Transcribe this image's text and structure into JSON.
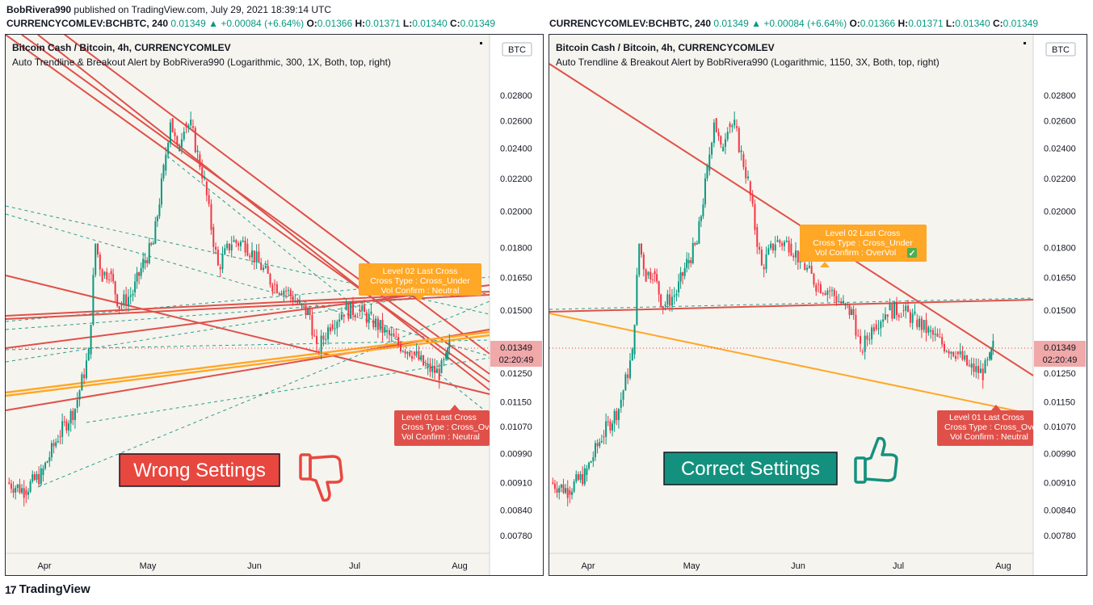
{
  "header": {
    "author": "BobRivera990",
    "published": "published on TradingView.com, July 29, 2021 18:39:14 UTC"
  },
  "quote": {
    "symbol": "CURRENCYCOMLEV:BCHBTC, 240",
    "last": "0.01349",
    "arrow": "▲",
    "change": "+0.00084 (+6.64%)",
    "o_label": "O:",
    "o": "0.01366",
    "h_label": "H:",
    "h": "0.01371",
    "l_label": "L:",
    "l": "0.01340",
    "c_label": "C:",
    "c": "0.01349"
  },
  "footer": {
    "brand": "TradingView",
    "logo": "17"
  },
  "colors": {
    "up": "#089981",
    "down": "#f23645",
    "red_line": "#e0504a",
    "orange_line": "#ffa726",
    "bg": "#f6f4ee",
    "price_badge": "#f0a8a8",
    "teal_badge": "#14917e"
  },
  "panels": [
    {
      "title": "Bitcoin Cash / Bitcoin, 4h, CURRENCYCOMLEV",
      "subtitle": "Auto Trendline & Breakout Alert by BobRivera990 (Logarithmic, 300, 1X, Both, top, right)",
      "currency_badge": "BTC",
      "price_badge": {
        "price": "0.01349",
        "time": "02:20:49"
      },
      "banner": "Wrong Settings",
      "banner_icon": "thumbs-down-icon",
      "level02": [
        "Level 02 Last Cross",
        "Cross Type : Cross_Under",
        "Vol Confirm : Neutral"
      ],
      "level01": [
        "Level 01 Last Cross",
        "Cross Type : Cross_Over",
        "Vol Confirm : Neutral"
      ]
    },
    {
      "title": "Bitcoin Cash / Bitcoin, 4h, CURRENCYCOMLEV",
      "subtitle": "Auto Trendline & Breakout Alert by BobRivera990 (Logarithmic, 1150, 3X, Both, top, right)",
      "currency_badge": "BTC",
      "price_badge": {
        "price": "0.01349",
        "time": "02:20:49"
      },
      "banner": "Correct Settings",
      "banner_icon": "thumbs-up-icon",
      "level02": [
        "Level 02 Last Cross",
        "Cross Type : Cross_Under",
        "Vol Confirm : OverVol"
      ],
      "level02_check": "✓",
      "level01": [
        "Level 01 Last Cross",
        "Cross Type : Cross_Over",
        "Vol Confirm : Neutral"
      ]
    }
  ],
  "chart_data": {
    "type": "line",
    "scale": "logarithmic",
    "x_ticks": [
      "Apr",
      "May",
      "Jun",
      "Jul",
      "Aug"
    ],
    "y_ticks": [
      "0.02800",
      "0.02600",
      "0.02400",
      "0.02200",
      "0.02000",
      "0.01800",
      "0.01650",
      "0.01500",
      "0.01349",
      "0.01250",
      "0.01150",
      "0.01070",
      "0.00990",
      "0.00910",
      "0.00840",
      "0.00780"
    ],
    "ylim": [
      0.0075,
      0.031
    ],
    "price_series": {
      "name": "BCHBTC close (approx.)",
      "x": [
        "Mar 21",
        "Mar 26",
        "Mar 31",
        "Apr 5",
        "Apr 10",
        "Apr 14",
        "Apr 16",
        "Apr 18",
        "Apr 20",
        "Apr 23",
        "Apr 27",
        "Apr 30",
        "May 3",
        "May 6",
        "May 8",
        "May 10",
        "May 12",
        "May 14",
        "May 16",
        "May 18",
        "May 20",
        "May 22",
        "May 26",
        "May 30",
        "Jun 3",
        "Jun 7",
        "Jun 11",
        "Jun 15",
        "Jun 18",
        "Jun 20",
        "Jun 24",
        "Jun 28",
        "Jul 2",
        "Jul 6",
        "Jul 10",
        "Jul 14",
        "Jul 18",
        "Jul 22",
        "Jul 26",
        "Jul 28",
        "Jul 29"
      ],
      "y": [
        0.0091,
        0.0089,
        0.0093,
        0.0104,
        0.0113,
        0.0132,
        0.0182,
        0.0166,
        0.0168,
        0.0152,
        0.0158,
        0.0172,
        0.0182,
        0.0225,
        0.0262,
        0.0238,
        0.0258,
        0.0256,
        0.0236,
        0.0218,
        0.0191,
        0.017,
        0.0183,
        0.0182,
        0.0172,
        0.0162,
        0.0159,
        0.0152,
        0.0148,
        0.0133,
        0.0144,
        0.015,
        0.015,
        0.0146,
        0.0141,
        0.0136,
        0.0133,
        0.0127,
        0.0125,
        0.013,
        0.0135
      ]
    }
  }
}
